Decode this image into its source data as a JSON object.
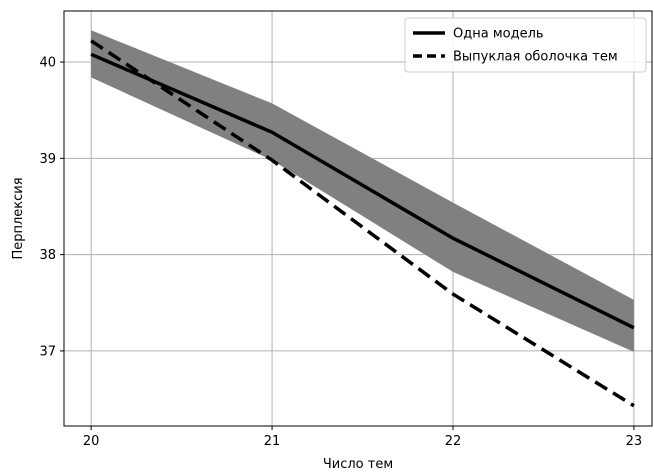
{
  "chart_data": {
    "type": "line",
    "title": "",
    "xlabel": "Число тем",
    "ylabel": "Перплексия",
    "x": [
      20,
      21,
      22,
      23
    ],
    "x_tick_labels": [
      "20",
      "21",
      "22",
      "23"
    ],
    "y_ticks": [
      37,
      38,
      39,
      40
    ],
    "y_tick_labels": [
      "37",
      "38",
      "39",
      "40"
    ],
    "xlim": [
      19.85,
      23.1
    ],
    "ylim": [
      36.22,
      40.53
    ],
    "grid": true,
    "legend_position": "top-right",
    "series": [
      {
        "name": "Одна модель",
        "style": "solid",
        "color": "#000000",
        "values": [
          40.08,
          39.27,
          38.17,
          37.24
        ]
      },
      {
        "name": "Выпуклая оболочка тем",
        "style": "dashed",
        "color": "#000000",
        "values": [
          40.22,
          38.98,
          37.59,
          36.43
        ]
      }
    ],
    "band": {
      "color": "#808080",
      "upper": [
        40.33,
        39.57,
        38.54,
        37.53
      ],
      "lower": [
        39.84,
        38.98,
        37.82,
        36.99
      ]
    }
  }
}
